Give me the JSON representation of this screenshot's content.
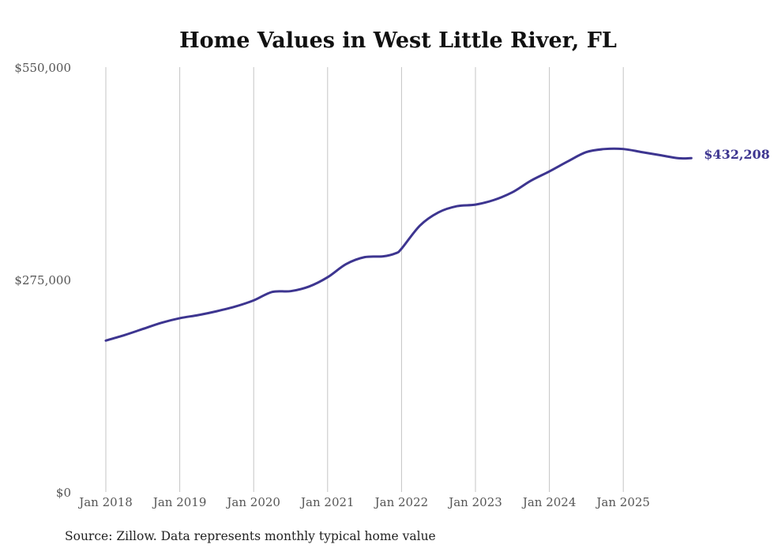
{
  "chart_data": {
    "type": "line",
    "title": "Home Values in West Little River, FL",
    "xlabel": "",
    "ylabel": "",
    "source_note": "Source: Zillow. Data represents monthly typical home value",
    "ylim": [
      0,
      550000
    ],
    "xlim": [
      2018.0,
      2025.92
    ],
    "y_ticks": [
      {
        "value": 0,
        "label": "$0"
      },
      {
        "value": 275000,
        "label": "$275,000"
      },
      {
        "value": 550000,
        "label": "$550,000"
      }
    ],
    "x_ticks": [
      {
        "value": 2018,
        "label": "Jan 2018"
      },
      {
        "value": 2019,
        "label": "Jan 2019"
      },
      {
        "value": 2020,
        "label": "Jan 2020"
      },
      {
        "value": 2021,
        "label": "Jan 2021"
      },
      {
        "value": 2022,
        "label": "Jan 2022"
      },
      {
        "value": 2023,
        "label": "Jan 2023"
      },
      {
        "value": 2024,
        "label": "Jan 2024"
      },
      {
        "value": 2025,
        "label": "Jan 2025"
      }
    ],
    "grid": {
      "vertical": true,
      "horizontal": false
    },
    "legend": "none",
    "series": [
      {
        "name": "Typical home value",
        "color": "#3d3590",
        "end_label": "$432,208",
        "points": [
          {
            "x": 2018.0,
            "y": 196000
          },
          {
            "x": 2018.25,
            "y": 203000
          },
          {
            "x": 2018.5,
            "y": 211000
          },
          {
            "x": 2018.75,
            "y": 219000
          },
          {
            "x": 2019.0,
            "y": 225000
          },
          {
            "x": 2019.25,
            "y": 229000
          },
          {
            "x": 2019.5,
            "y": 234000
          },
          {
            "x": 2019.75,
            "y": 240000
          },
          {
            "x": 2020.0,
            "y": 248000
          },
          {
            "x": 2020.25,
            "y": 259000
          },
          {
            "x": 2020.5,
            "y": 260000
          },
          {
            "x": 2020.75,
            "y": 266000
          },
          {
            "x": 2021.0,
            "y": 278000
          },
          {
            "x": 2021.25,
            "y": 295000
          },
          {
            "x": 2021.5,
            "y": 304000
          },
          {
            "x": 2021.75,
            "y": 305000
          },
          {
            "x": 2021.92,
            "y": 309000
          },
          {
            "x": 2022.0,
            "y": 315000
          },
          {
            "x": 2022.25,
            "y": 345000
          },
          {
            "x": 2022.5,
            "y": 362000
          },
          {
            "x": 2022.75,
            "y": 370000
          },
          {
            "x": 2023.0,
            "y": 372000
          },
          {
            "x": 2023.25,
            "y": 378000
          },
          {
            "x": 2023.5,
            "y": 388000
          },
          {
            "x": 2023.75,
            "y": 403000
          },
          {
            "x": 2024.0,
            "y": 415000
          },
          {
            "x": 2024.25,
            "y": 428000
          },
          {
            "x": 2024.5,
            "y": 440000
          },
          {
            "x": 2024.75,
            "y": 444000
          },
          {
            "x": 2025.0,
            "y": 444000
          },
          {
            "x": 2025.25,
            "y": 440000
          },
          {
            "x": 2025.5,
            "y": 436000
          },
          {
            "x": 2025.75,
            "y": 432000
          },
          {
            "x": 2025.92,
            "y": 432208
          }
        ]
      }
    ]
  }
}
